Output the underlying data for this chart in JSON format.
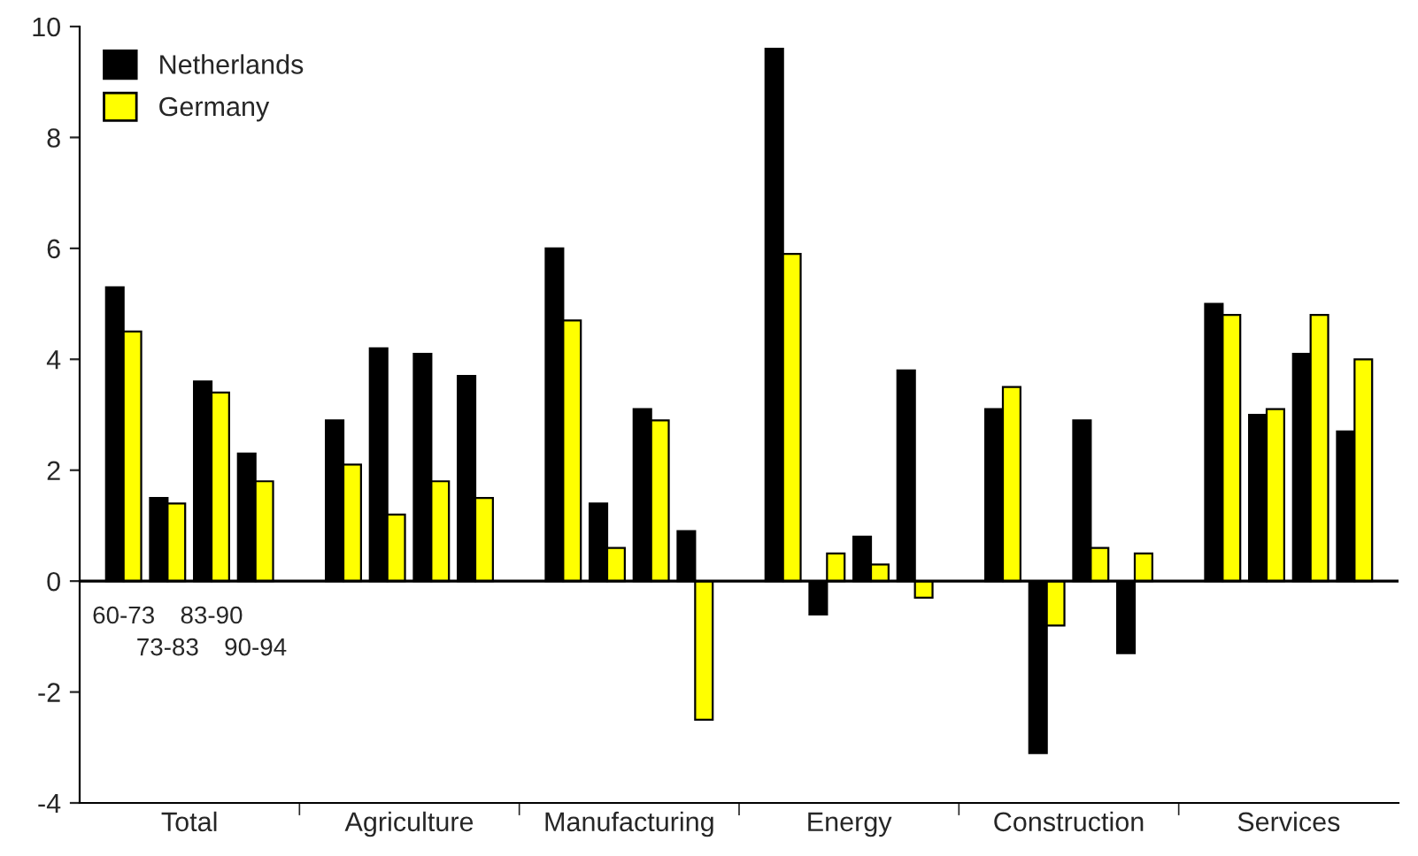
{
  "chart_data": {
    "type": "bar",
    "categories": [
      "60-73",
      "73-83",
      "83-90",
      "90-94",
      null,
      null,
      null,
      null,
      null,
      null,
      null,
      null,
      null,
      null,
      null,
      null,
      null,
      null,
      null,
      null,
      null,
      null,
      null,
      null,
      null,
      null,
      null,
      null,
      null
    ],
    "series": [
      {
        "name": "Netherlands",
        "color": "#000000",
        "values": [
          5.3,
          1.5,
          3.6,
          2.3,
          null,
          2.9,
          4.2,
          4.1,
          3.7,
          null,
          6.0,
          1.4,
          3.1,
          0.9,
          null,
          9.6,
          -0.6,
          0.8,
          3.8,
          null,
          3.1,
          -3.1,
          2.9,
          -1.3,
          null,
          5.0,
          3.0,
          4.1,
          2.7
        ]
      },
      {
        "name": "Germany",
        "color": "#ffff00",
        "values": [
          4.5,
          1.4,
          3.4,
          1.8,
          null,
          2.1,
          1.2,
          1.8,
          1.5,
          null,
          4.7,
          0.6,
          2.9,
          -2.5,
          null,
          5.9,
          0.5,
          0.3,
          -0.3,
          null,
          3.5,
          -0.8,
          0.6,
          0.5,
          null,
          4.8,
          3.1,
          4.8,
          4.0
        ]
      }
    ],
    "annotations": [
      "Total",
      "Agriculture",
      "Manufacturing",
      "Energy",
      "Construction",
      "Services"
    ],
    "ylim": [
      -4,
      10
    ],
    "yticks": [
      -4,
      -2,
      0,
      2,
      4,
      6,
      8,
      10
    ],
    "grid": false,
    "legend": "top left"
  }
}
